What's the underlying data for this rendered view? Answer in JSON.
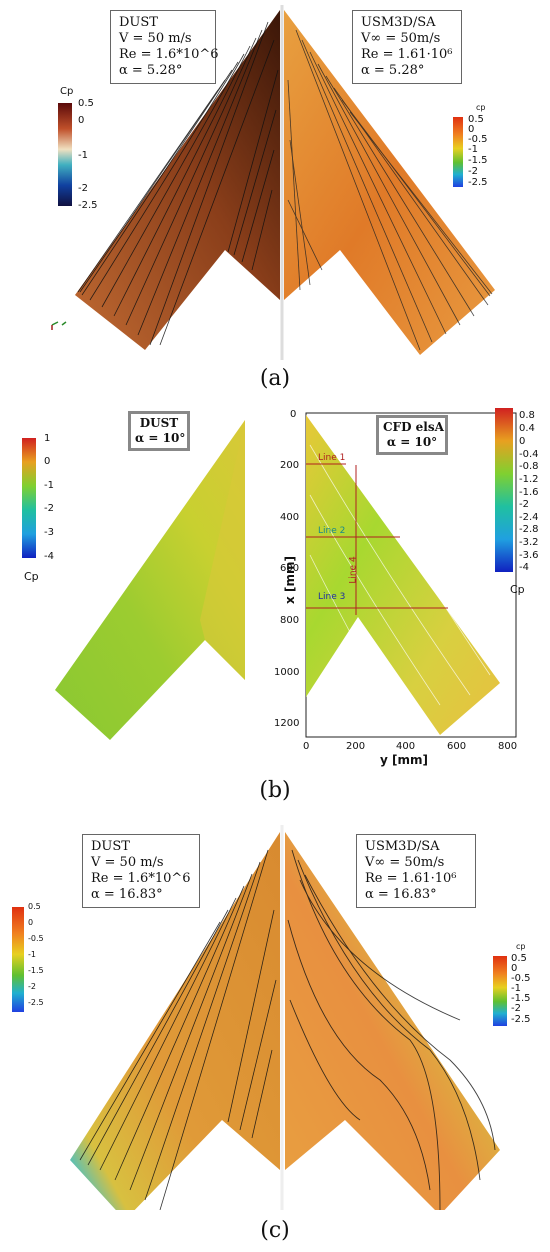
{
  "panel_a": {
    "left_box": [
      "DUST",
      "V = 50 m/s",
      "Re = 1.6*10^6",
      "α = 5.28°"
    ],
    "right_box": [
      "USM3D/SA",
      "V∞ = 50m/s",
      "Re = 1.61·10⁶",
      "α = 5.28°"
    ],
    "left_cbar": {
      "title": "Cp",
      "ticks": [
        "0.5",
        "0",
        "-1",
        "-2",
        "-2.5"
      ]
    },
    "right_cbar": {
      "title": "cp",
      "ticks": [
        "0.5",
        "0",
        "-0.5",
        "-1",
        "-1.5",
        "-2",
        "-2.5"
      ]
    },
    "caption": "(a)"
  },
  "panel_b": {
    "left_box": [
      "DUST",
      "α = 10°"
    ],
    "right_box": [
      "CFD elsA",
      "α = 10°"
    ],
    "left_cbar": {
      "title": "Cp",
      "ticks": [
        "1",
        "0",
        "-1",
        "-2",
        "-3",
        "-4"
      ]
    },
    "right_cbar": {
      "title": "Cp",
      "ticks": [
        "0.8",
        "0.4",
        "0",
        "-0.4",
        "-0.8",
        "-1.2",
        "-1.6",
        "-2",
        "-2.4",
        "-2.8",
        "-3.2",
        "-3.6",
        "-4"
      ]
    },
    "plot": {
      "xlabel": "y [mm]",
      "ylabel": "x [mm]",
      "xticks": [
        "0",
        "200",
        "400",
        "600",
        "800"
      ],
      "yticks": [
        "0",
        "200",
        "400",
        "600",
        "800",
        "1000",
        "1200"
      ],
      "lines": [
        "Line 1",
        "Line 2",
        "Line 3",
        "Line 4"
      ]
    },
    "caption": "(b)"
  },
  "panel_c": {
    "left_box": [
      "DUST",
      "V = 50 m/s",
      "Re = 1.6*10^6",
      "α = 16.83°"
    ],
    "right_box": [
      "USM3D/SA",
      "V∞ = 50m/s",
      "Re = 1.61·10⁶",
      "α = 16.83°"
    ],
    "left_cbar": {
      "ticks": [
        "0.5",
        "0",
        "-0.5",
        "-1",
        "-1.5",
        "-2",
        "-2.5"
      ]
    },
    "right_cbar": {
      "title": "cp",
      "ticks": [
        "0.5",
        "0",
        "-0.5",
        "-1",
        "-1.5",
        "-2",
        "-2.5"
      ]
    },
    "caption": "(c)"
  },
  "colors": {
    "dust_dark_brown": "#5a2a12",
    "dust_light_brown": "#b8612a",
    "orange": "#e88a2a",
    "yellow": "#e0c040",
    "green": "#8ccc30",
    "blue": "#2040c0"
  }
}
